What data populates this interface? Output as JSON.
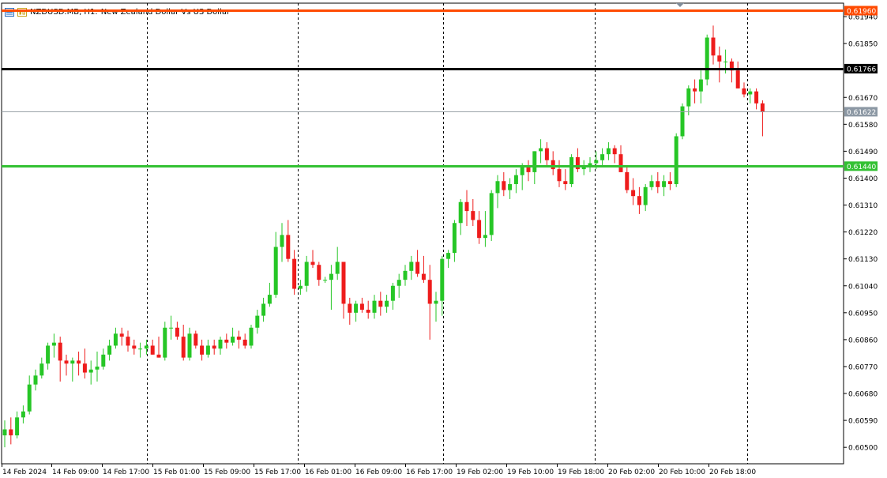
{
  "window": {
    "symbol": "NZDUSD.MB, H1:",
    "description": "New Zealand Dollar Vs US Dollar"
  },
  "chart_data": {
    "type": "candlestick",
    "price_axis": {
      "range": [
        0.60445,
        0.61985
      ],
      "ticks": [
        "0.61940",
        "0.61850",
        "0.61670",
        "0.61580",
        "0.61490",
        "0.61400",
        "0.61310",
        "0.61220",
        "0.61130",
        "0.61040",
        "0.60950",
        "0.60860",
        "0.60770",
        "0.60680",
        "0.60590",
        "0.60500"
      ]
    },
    "time_axis": {
      "labels": [
        "14 Feb 2024",
        "14 Feb 09:00",
        "14 Feb 17:00",
        "15 Feb 01:00",
        "15 Feb 09:00",
        "15 Feb 17:00",
        "16 Feb 01:00",
        "16 Feb 09:00",
        "16 Feb 17:00",
        "19 Feb 02:00",
        "19 Feb 10:00",
        "19 Feb 18:00",
        "20 Feb 02:00",
        "20 Feb 10:00",
        "20 Feb 18:00"
      ]
    },
    "price_lines": [
      {
        "label": "0.61960",
        "value": 0.6196,
        "color": "#ff4a00",
        "kind": "horizontal-line"
      },
      {
        "label": "0.61766",
        "value": 0.61766,
        "color": "#000000",
        "kind": "horizontal-line"
      },
      {
        "label": "0.61622",
        "value": 0.61622,
        "color": "#9aa3a9",
        "kind": "bid-line"
      },
      {
        "label": "0.61440",
        "value": 0.6144,
        "color": "#33c133",
        "kind": "horizontal-line"
      }
    ],
    "period_separators": [
      "14 Feb 17:00",
      "15 Feb 17:00",
      "16 Feb 17:00",
      "19 Feb 18:00",
      "20 Feb 18:00"
    ],
    "colors": {
      "bull": "#26c626",
      "bear": "#ee1c1c",
      "axis": "#000000",
      "grid_sep": "#000000",
      "bg": "#ffffff"
    },
    "candles": [
      [
        0.6054,
        0.6059,
        0.605,
        0.6056
      ],
      [
        0.6056,
        0.606,
        0.6051,
        0.6054
      ],
      [
        0.6054,
        0.6062,
        0.6053,
        0.606
      ],
      [
        0.606,
        0.6064,
        0.6058,
        0.6062
      ],
      [
        0.6062,
        0.6074,
        0.6061,
        0.6071
      ],
      [
        0.6071,
        0.6076,
        0.6069,
        0.6074
      ],
      [
        0.6074,
        0.608,
        0.6073,
        0.6078
      ],
      [
        0.6078,
        0.6085,
        0.6076,
        0.6084
      ],
      [
        0.6084,
        0.6088,
        0.608,
        0.6085
      ],
      [
        0.6085,
        0.6087,
        0.6072,
        0.6079
      ],
      [
        0.6079,
        0.6081,
        0.6074,
        0.6078
      ],
      [
        0.6078,
        0.608,
        0.6072,
        0.6079
      ],
      [
        0.6079,
        0.6082,
        0.6074,
        0.6078
      ],
      [
        0.6078,
        0.6083,
        0.6073,
        0.6075
      ],
      [
        0.6075,
        0.6079,
        0.6071,
        0.6076
      ],
      [
        0.6076,
        0.6082,
        0.6072,
        0.6077
      ],
      [
        0.6077,
        0.6083,
        0.6076,
        0.6081
      ],
      [
        0.6081,
        0.6086,
        0.6079,
        0.6084
      ],
      [
        0.6084,
        0.609,
        0.6083,
        0.6088
      ],
      [
        0.6088,
        0.609,
        0.6084,
        0.6087
      ],
      [
        0.6087,
        0.6089,
        0.6082,
        0.6084
      ],
      [
        0.6084,
        0.6086,
        0.6081,
        0.6083
      ],
      [
        0.6083,
        0.6085,
        0.608,
        0.6083
      ],
      [
        0.6083,
        0.6086,
        0.6081,
        0.6084
      ],
      [
        0.6084,
        0.6086,
        0.6081,
        0.6081
      ],
      [
        0.6081,
        0.6087,
        0.608,
        0.608
      ],
      [
        0.608,
        0.6092,
        0.6079,
        0.609
      ],
      [
        0.609,
        0.6094,
        0.6086,
        0.609
      ],
      [
        0.609,
        0.6092,
        0.6086,
        0.6087
      ],
      [
        0.6087,
        0.6091,
        0.6079,
        0.608
      ],
      [
        0.608,
        0.609,
        0.6079,
        0.6088
      ],
      [
        0.6088,
        0.6089,
        0.6083,
        0.6084
      ],
      [
        0.6084,
        0.6086,
        0.6079,
        0.6081
      ],
      [
        0.6081,
        0.6086,
        0.608,
        0.6084
      ],
      [
        0.6084,
        0.6086,
        0.6081,
        0.6083
      ],
      [
        0.6083,
        0.6087,
        0.6081,
        0.6086
      ],
      [
        0.6086,
        0.6088,
        0.6083,
        0.6085
      ],
      [
        0.6085,
        0.609,
        0.6084,
        0.6087
      ],
      [
        0.6087,
        0.6089,
        0.6083,
        0.6086
      ],
      [
        0.6086,
        0.6088,
        0.6083,
        0.6084
      ],
      [
        0.6084,
        0.6091,
        0.6083,
        0.609
      ],
      [
        0.609,
        0.6096,
        0.6088,
        0.6094
      ],
      [
        0.6094,
        0.61,
        0.6092,
        0.6098
      ],
      [
        0.6098,
        0.6105,
        0.6097,
        0.6101
      ],
      [
        0.6101,
        0.6122,
        0.61,
        0.6117
      ],
      [
        0.6117,
        0.6125,
        0.6112,
        0.6121
      ],
      [
        0.6121,
        0.6126,
        0.6112,
        0.6113
      ],
      [
        0.6113,
        0.6116,
        0.6101,
        0.6103
      ],
      [
        0.6103,
        0.6106,
        0.6101,
        0.6104
      ],
      [
        0.6104,
        0.6114,
        0.6102,
        0.6112
      ],
      [
        0.6112,
        0.6116,
        0.611,
        0.6111
      ],
      [
        0.6111,
        0.6112,
        0.6104,
        0.6106
      ],
      [
        0.6106,
        0.6107,
        0.6105,
        0.6106
      ],
      [
        0.6106,
        0.6111,
        0.6096,
        0.6108
      ],
      [
        0.6108,
        0.6117,
        0.6106,
        0.6112
      ],
      [
        0.6112,
        0.6112,
        0.6093,
        0.6098
      ],
      [
        0.6098,
        0.61,
        0.6091,
        0.6095
      ],
      [
        0.6095,
        0.6099,
        0.6092,
        0.6098
      ],
      [
        0.6098,
        0.61,
        0.6095,
        0.6096
      ],
      [
        0.6096,
        0.6099,
        0.6093,
        0.6095
      ],
      [
        0.6095,
        0.6101,
        0.6093,
        0.6099
      ],
      [
        0.6099,
        0.6102,
        0.6094,
        0.6097
      ],
      [
        0.6097,
        0.6101,
        0.6095,
        0.6099
      ],
      [
        0.6099,
        0.6105,
        0.6096,
        0.6104
      ],
      [
        0.6104,
        0.6108,
        0.61,
        0.6106
      ],
      [
        0.6106,
        0.6111,
        0.6104,
        0.6109
      ],
      [
        0.6109,
        0.6114,
        0.6106,
        0.6112
      ],
      [
        0.6112,
        0.6116,
        0.6107,
        0.6108
      ],
      [
        0.6108,
        0.6114,
        0.6105,
        0.6106
      ],
      [
        0.6106,
        0.6111,
        0.6086,
        0.6098
      ],
      [
        0.6098,
        0.6102,
        0.6092,
        0.6099
      ],
      [
        0.6099,
        0.6114,
        0.6094,
        0.6113
      ],
      [
        0.6113,
        0.6116,
        0.611,
        0.6115
      ],
      [
        0.6115,
        0.6126,
        0.6112,
        0.6125
      ],
      [
        0.6125,
        0.6133,
        0.6121,
        0.6132
      ],
      [
        0.6132,
        0.6136,
        0.6124,
        0.6129
      ],
      [
        0.6129,
        0.6133,
        0.6124,
        0.6126
      ],
      [
        0.6126,
        0.6129,
        0.6118,
        0.612
      ],
      [
        0.612,
        0.6129,
        0.6117,
        0.6121
      ],
      [
        0.6121,
        0.6136,
        0.6119,
        0.6135
      ],
      [
        0.6135,
        0.6141,
        0.613,
        0.6139
      ],
      [
        0.6139,
        0.6142,
        0.6134,
        0.6136
      ],
      [
        0.6136,
        0.614,
        0.6133,
        0.6138
      ],
      [
        0.6138,
        0.6143,
        0.6135,
        0.6141
      ],
      [
        0.6141,
        0.6145,
        0.6136,
        0.6144
      ],
      [
        0.6144,
        0.6146,
        0.6139,
        0.6142
      ],
      [
        0.6142,
        0.6149,
        0.6138,
        0.6149
      ],
      [
        0.6149,
        0.6153,
        0.6145,
        0.615
      ],
      [
        0.615,
        0.6152,
        0.6144,
        0.6146
      ],
      [
        0.6146,
        0.6149,
        0.6141,
        0.6143
      ],
      [
        0.6143,
        0.6146,
        0.6137,
        0.6139
      ],
      [
        0.6139,
        0.6143,
        0.6136,
        0.6138
      ],
      [
        0.6138,
        0.6148,
        0.6137,
        0.6147
      ],
      [
        0.6147,
        0.615,
        0.6142,
        0.6143
      ],
      [
        0.6143,
        0.6146,
        0.6141,
        0.6144
      ],
      [
        0.6144,
        0.6147,
        0.6142,
        0.6145
      ],
      [
        0.6145,
        0.6149,
        0.6143,
        0.6146
      ],
      [
        0.6146,
        0.615,
        0.6144,
        0.6148
      ],
      [
        0.6148,
        0.6152,
        0.6146,
        0.615
      ],
      [
        0.615,
        0.6151,
        0.6145,
        0.6148
      ],
      [
        0.6148,
        0.6151,
        0.6142,
        0.6142
      ],
      [
        0.6142,
        0.6144,
        0.6135,
        0.6136
      ],
      [
        0.6136,
        0.614,
        0.6131,
        0.6134
      ],
      [
        0.6134,
        0.6137,
        0.6128,
        0.6131
      ],
      [
        0.6131,
        0.6138,
        0.6129,
        0.6137
      ],
      [
        0.6137,
        0.6141,
        0.6136,
        0.6139
      ],
      [
        0.6139,
        0.6142,
        0.6135,
        0.6137
      ],
      [
        0.6137,
        0.6141,
        0.6134,
        0.6139
      ],
      [
        0.6139,
        0.6142,
        0.6136,
        0.6138
      ],
      [
        0.6138,
        0.6155,
        0.6137,
        0.6154
      ],
      [
        0.6154,
        0.6165,
        0.6153,
        0.6164
      ],
      [
        0.6164,
        0.6171,
        0.6161,
        0.617
      ],
      [
        0.617,
        0.6173,
        0.6165,
        0.6169
      ],
      [
        0.6169,
        0.6176,
        0.6165,
        0.6173
      ],
      [
        0.6173,
        0.6188,
        0.6171,
        0.6187
      ],
      [
        0.6187,
        0.6191,
        0.6178,
        0.6181
      ],
      [
        0.6181,
        0.6184,
        0.6172,
        0.6179
      ],
      [
        0.6179,
        0.6183,
        0.6175,
        0.6179
      ],
      [
        0.6179,
        0.618,
        0.6172,
        0.6176
      ],
      [
        0.6176,
        0.6179,
        0.617,
        0.617
      ],
      [
        0.617,
        0.6172,
        0.6167,
        0.6168
      ],
      [
        0.6168,
        0.617,
        0.6165,
        0.6169
      ],
      [
        0.6169,
        0.617,
        0.6163,
        0.6165
      ],
      [
        0.6165,
        0.6166,
        0.6154,
        0.61622
      ]
    ]
  }
}
